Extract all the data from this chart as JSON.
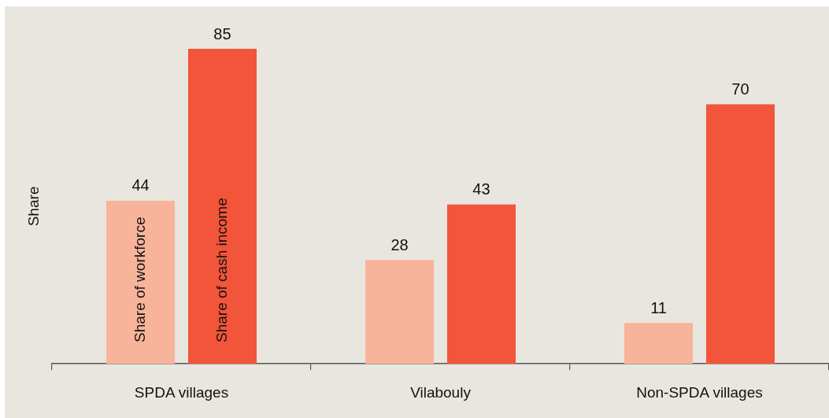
{
  "chart_data": {
    "type": "bar",
    "ylabel": "Share",
    "categories": [
      "SPDA villages",
      "Vilabouly",
      "Non-SPDA villages"
    ],
    "series": [
      {
        "name": "Share of workforce",
        "color": "#f7b49b",
        "values": [
          44,
          28,
          11
        ]
      },
      {
        "name": "Share of cash income",
        "color": "#f2553a",
        "values": [
          85,
          43,
          70
        ]
      }
    ],
    "data_labels": true,
    "grid": false,
    "legend": false
  }
}
